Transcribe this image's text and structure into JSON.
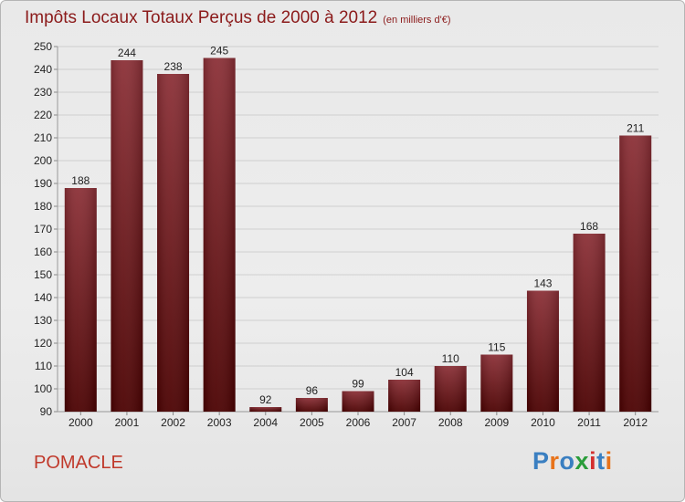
{
  "title": "Impôts Locaux Totaux Perçus de 2000 à 2012",
  "unit_note": "(en milliers d'€)",
  "commune": "POMACLE",
  "logo": {
    "text": "Proxiti",
    "letter_colors": [
      "#3a7fc1",
      "#e8731a",
      "#3a7fc1",
      "#2a9d3a",
      "#d32f2f",
      "#3a7fc1",
      "#e8731a"
    ]
  },
  "colors": {
    "bar_top": "#8b2f36",
    "bar_bottom": "#4a0000",
    "grid": "#cfcfcf"
  },
  "chart_data": {
    "type": "bar",
    "title": "Impôts Locaux Totaux Perçus de 2000 à 2012",
    "subtitle": "(en milliers d'€)",
    "categories": [
      "2000",
      "2001",
      "2002",
      "2003",
      "2004",
      "2005",
      "2006",
      "2007",
      "2008",
      "2009",
      "2010",
      "2011",
      "2012"
    ],
    "values": [
      188,
      244,
      238,
      245,
      92,
      96,
      99,
      104,
      110,
      115,
      143,
      168,
      211
    ],
    "ylim": [
      90,
      250
    ],
    "yticks": [
      90,
      100,
      110,
      120,
      130,
      140,
      150,
      160,
      170,
      180,
      190,
      200,
      210,
      220,
      230,
      240,
      250
    ],
    "grid": true,
    "xlabel": "",
    "ylabel": ""
  }
}
